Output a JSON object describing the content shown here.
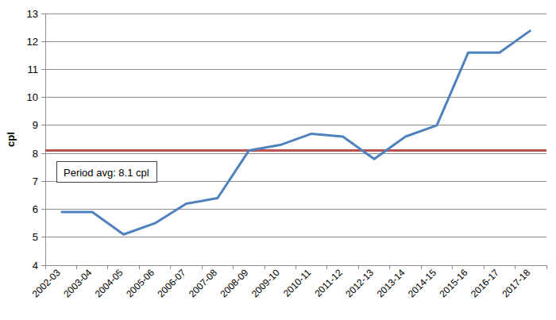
{
  "chart_data": {
    "type": "line",
    "y_label": "cpl",
    "categories": [
      "2002-03",
      "2003-04",
      "2004-05",
      "2005-06",
      "2006-07",
      "2007-08",
      "2008-09",
      "2009-10",
      "2010-11",
      "2011-12",
      "2012-13",
      "2013-14",
      "2014-15",
      "2015-16",
      "2016-17",
      "2017-18"
    ],
    "values": [
      5.9,
      5.9,
      5.1,
      5.5,
      6.2,
      6.4,
      8.1,
      8.3,
      8.7,
      8.6,
      7.8,
      8.6,
      9.0,
      11.6,
      11.6,
      12.4
    ],
    "color": "#4f81bd",
    "reference_line": {
      "value": 8.1,
      "label": "Period avg: 8.1 cpl",
      "color": "#c0504d"
    },
    "ylim": [
      4,
      13
    ],
    "yticks": [
      4,
      5,
      6,
      7,
      8,
      9,
      10,
      11,
      12,
      13
    ],
    "grid": true
  }
}
